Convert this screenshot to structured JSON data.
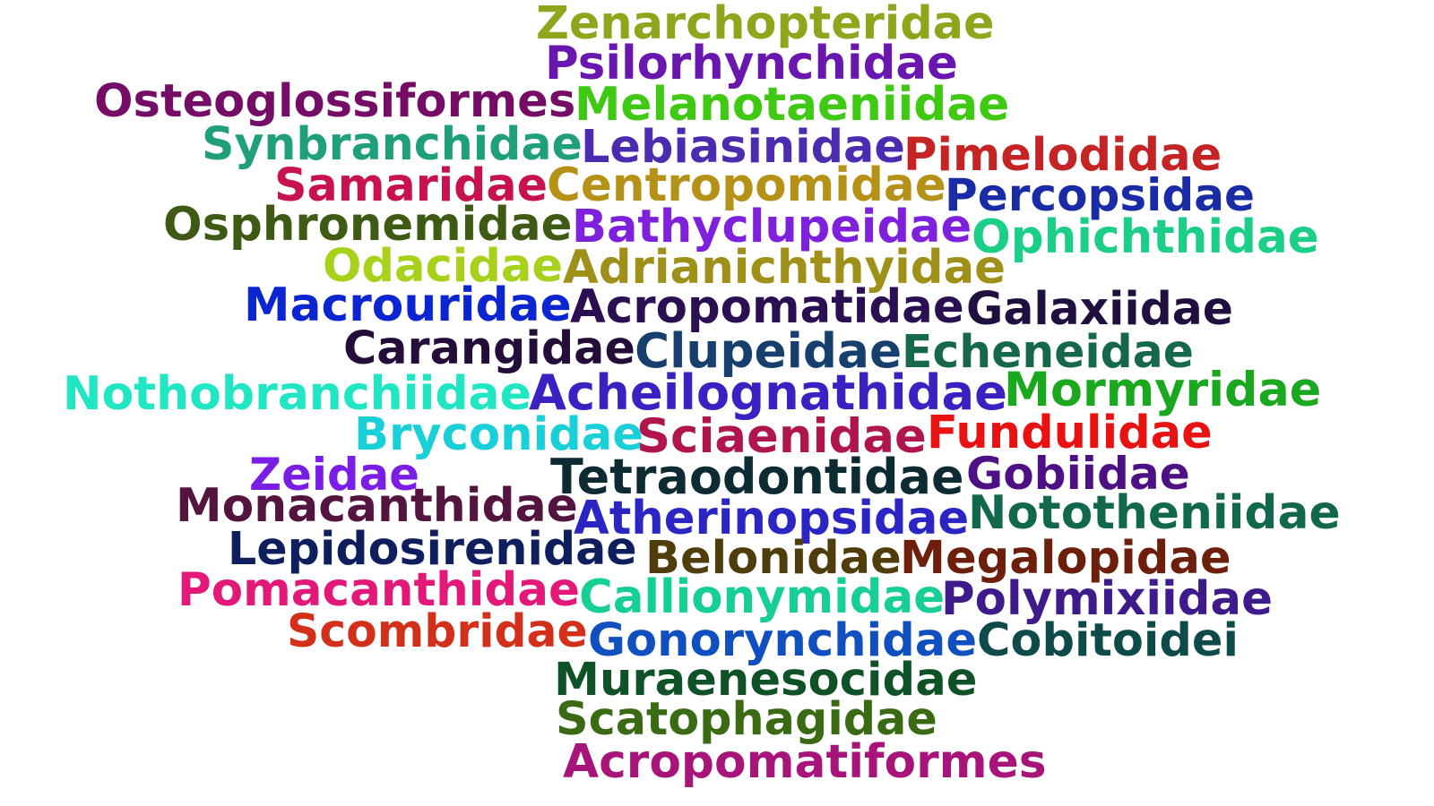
{
  "words": [
    {
      "text": "Zenarchopteridae",
      "color": "#8da61c"
    },
    {
      "text": "Psilorhynchidae",
      "color": "#6a17b0"
    },
    {
      "text": "Osteoglossiformes",
      "color": "#750d66"
    },
    {
      "text": "Melanotaeniidae",
      "color": "#3fc913"
    },
    {
      "text": "Synbranchidae",
      "color": "#1fa07a"
    },
    {
      "text": "Lebiasinidae",
      "color": "#4b2bb0"
    },
    {
      "text": "Pimelodidae",
      "color": "#c42424"
    },
    {
      "text": "Samaridae",
      "color": "#c8124f"
    },
    {
      "text": "Centropomidae",
      "color": "#b59217"
    },
    {
      "text": "Percopsidae",
      "color": "#1a2ba6"
    },
    {
      "text": "Osphronemidae",
      "color": "#3f5a14"
    },
    {
      "text": "Bathyclupeidae",
      "color": "#7f20dc"
    },
    {
      "text": "Ophichthidae",
      "color": "#1ccf88"
    },
    {
      "text": "Odacidae",
      "color": "#a7d11a"
    },
    {
      "text": "Adrianichthyidae",
      "color": "#9e9018"
    },
    {
      "text": "Macrouridae",
      "color": "#0b25d0"
    },
    {
      "text": "Acropomatidae",
      "color": "#2a0f52"
    },
    {
      "text": "Galaxiidae",
      "color": "#210f3f"
    },
    {
      "text": "Carangidae",
      "color": "#250d3a"
    },
    {
      "text": "Clupeidae",
      "color": "#163f6e"
    },
    {
      "text": "Echeneidae",
      "color": "#16684b"
    },
    {
      "text": "Nothobranchiidae",
      "color": "#21e6c3"
    },
    {
      "text": "Acheilognathidae",
      "color": "#3a22c2"
    },
    {
      "text": "Mormyridae",
      "color": "#1aa81e"
    },
    {
      "text": "Bryconidae",
      "color": "#19d0d8"
    },
    {
      "text": "Sciaenidae",
      "color": "#b0154c"
    },
    {
      "text": "Fundulidae",
      "color": "#e81212"
    },
    {
      "text": "Zeidae",
      "color": "#7a1ee6"
    },
    {
      "text": "Tetraodontidae",
      "color": "#0d2b33"
    },
    {
      "text": "Gobiidae",
      "color": "#4d1085"
    },
    {
      "text": "Monacanthidae",
      "color": "#541440"
    },
    {
      "text": "Atherinopsidae",
      "color": "#2b25c4"
    },
    {
      "text": "Nototheniidae",
      "color": "#12684d"
    },
    {
      "text": "Lepidosirenidae",
      "color": "#0f1f5e"
    },
    {
      "text": "Belonidae",
      "color": "#4f3d0c"
    },
    {
      "text": "Megalopidae",
      "color": "#6e1f0c"
    },
    {
      "text": "Pomacanthidae",
      "color": "#e3197a"
    },
    {
      "text": "Callionymidae",
      "color": "#17cf94"
    },
    {
      "text": "Polymixiidae",
      "color": "#3f1a8a"
    },
    {
      "text": "Scombridae",
      "color": "#d3301b"
    },
    {
      "text": "Gonorynchidae",
      "color": "#0f4fbf"
    },
    {
      "text": "Cobitoidei",
      "color": "#0f4a4a"
    },
    {
      "text": "Muraenesocidae",
      "color": "#0f5227"
    },
    {
      "text": "Scatophagidae",
      "color": "#3a6b14"
    },
    {
      "text": "Acropomatiformes",
      "color": "#a8157a"
    }
  ]
}
